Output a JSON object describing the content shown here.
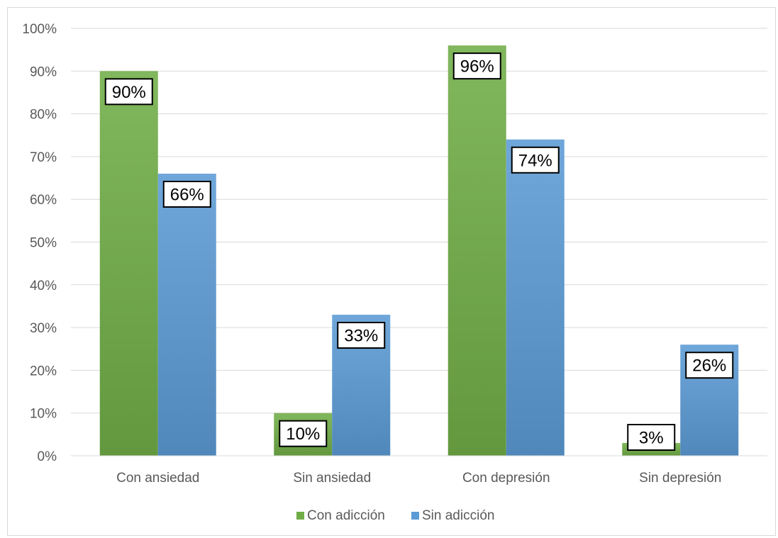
{
  "chart_data": {
    "type": "bar",
    "title": "",
    "xlabel": "",
    "ylabel": "",
    "categories": [
      "Con ansiedad",
      "Sin ansiedad",
      "Con depresión",
      "Sin depresión"
    ],
    "series": [
      {
        "name": "Con adicción",
        "values": [
          90,
          10,
          96,
          3
        ],
        "labels": [
          "90%",
          "10%",
          "96%",
          "3%"
        ],
        "color": "#70ad47"
      },
      {
        "name": "Sin adicción",
        "values": [
          66,
          33,
          74,
          26
        ],
        "labels": [
          "66%",
          "33%",
          "74%",
          "26%"
        ],
        "color": "#5b9bd5"
      }
    ],
    "ylim": [
      0,
      100
    ],
    "yticks": [
      0,
      10,
      20,
      30,
      40,
      50,
      60,
      70,
      80,
      90,
      100
    ],
    "ytick_labels": [
      "0%",
      "10%",
      "20%",
      "30%",
      "40%",
      "50%",
      "60%",
      "70%",
      "80%",
      "90%",
      "100%"
    ],
    "grid": true,
    "legend_position": "bottom"
  }
}
